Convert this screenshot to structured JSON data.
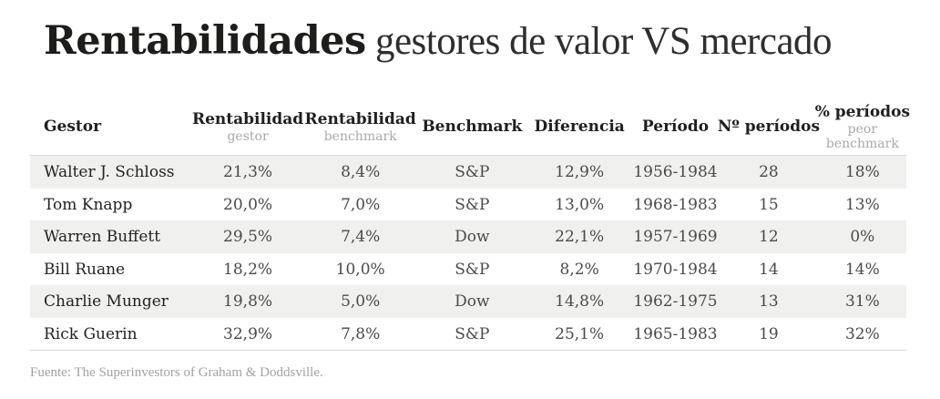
{
  "title": {
    "bold": "Rentabilidades",
    "light": " gestores de valor VS mercado"
  },
  "table": {
    "columns": [
      {
        "label": "Gestor",
        "sub_lines": []
      },
      {
        "label": "Rentabilidad",
        "sub_lines": [
          "gestor"
        ]
      },
      {
        "label": "Rentabilidad",
        "sub_lines": [
          "benchmark"
        ]
      },
      {
        "label": "Benchmark",
        "sub_lines": []
      },
      {
        "label": "Diferencia",
        "sub_lines": []
      },
      {
        "label": "Período",
        "sub_lines": []
      },
      {
        "label": "Nº períodos",
        "sub_lines": []
      },
      {
        "label": "% períodos",
        "sub_lines": [
          "peor",
          "benchmark"
        ]
      }
    ],
    "rows": [
      {
        "name": "Walter J. Schloss",
        "values": [
          "21,3%",
          "8,4%",
          "S&P",
          "12,9%",
          "1956-1984",
          "28",
          "18%"
        ]
      },
      {
        "name": "Tom Knapp",
        "values": [
          "20,0%",
          "7,0%",
          "S&P",
          "13,0%",
          "1968-1983",
          "15",
          "13%"
        ]
      },
      {
        "name": "Warren Buffett",
        "values": [
          "29,5%",
          "7,4%",
          "Dow",
          "22,1%",
          "1957-1969",
          "12",
          "0%"
        ]
      },
      {
        "name": "Bill Ruane",
        "values": [
          "18,2%",
          "10,0%",
          "S&P",
          "8,2%",
          "1970-1984",
          "14",
          "14%"
        ]
      },
      {
        "name": "Charlie Munger",
        "values": [
          "19,8%",
          "5,0%",
          "Dow",
          "14,8%",
          "1962-1975",
          "13",
          "31%"
        ]
      },
      {
        "name": "Rick Guerin",
        "values": [
          "32,9%",
          "7,8%",
          "S&P",
          "25,1%",
          "1965-1983",
          "19",
          "32%"
        ]
      }
    ]
  },
  "footer": {
    "source": "Fuente: The Superinvestors of Graham & Doddsville."
  },
  "colors": {
    "title": "#1d1d1b",
    "stripe": "#f0f0ee",
    "border": "#d9d9d9",
    "sub_label": "#a9a9a9",
    "footer_text": "#a2a2a2"
  },
  "chart_data": {
    "type": "table",
    "title": "Rentabilidades gestores de valor VS mercado",
    "columns": [
      "Gestor",
      "Rentabilidad gestor",
      "Rentabilidad benchmark",
      "Benchmark",
      "Diferencia",
      "Período",
      "Nº períodos",
      "% períodos peor benchmark"
    ],
    "rows": [
      [
        "Walter J. Schloss",
        "21,3%",
        "8,4%",
        "S&P",
        "12,9%",
        "1956-1984",
        "28",
        "18%"
      ],
      [
        "Tom Knapp",
        "20,0%",
        "7,0%",
        "S&P",
        "13,0%",
        "1968-1983",
        "15",
        "13%"
      ],
      [
        "Warren Buffett",
        "29,5%",
        "7,4%",
        "Dow",
        "22,1%",
        "1957-1969",
        "12",
        "0%"
      ],
      [
        "Bill Ruane",
        "18,2%",
        "10,0%",
        "S&P",
        "8,2%",
        "1970-1984",
        "14",
        "14%"
      ],
      [
        "Charlie Munger",
        "19,8%",
        "5,0%",
        "Dow",
        "14,8%",
        "1962-1975",
        "13",
        "31%"
      ],
      [
        "Rick Guerin",
        "32,9%",
        "7,8%",
        "S&P",
        "25,1%",
        "1965-1983",
        "19",
        "32%"
      ]
    ],
    "source": "Fuente: The Superinvestors of Graham & Doddsville."
  }
}
